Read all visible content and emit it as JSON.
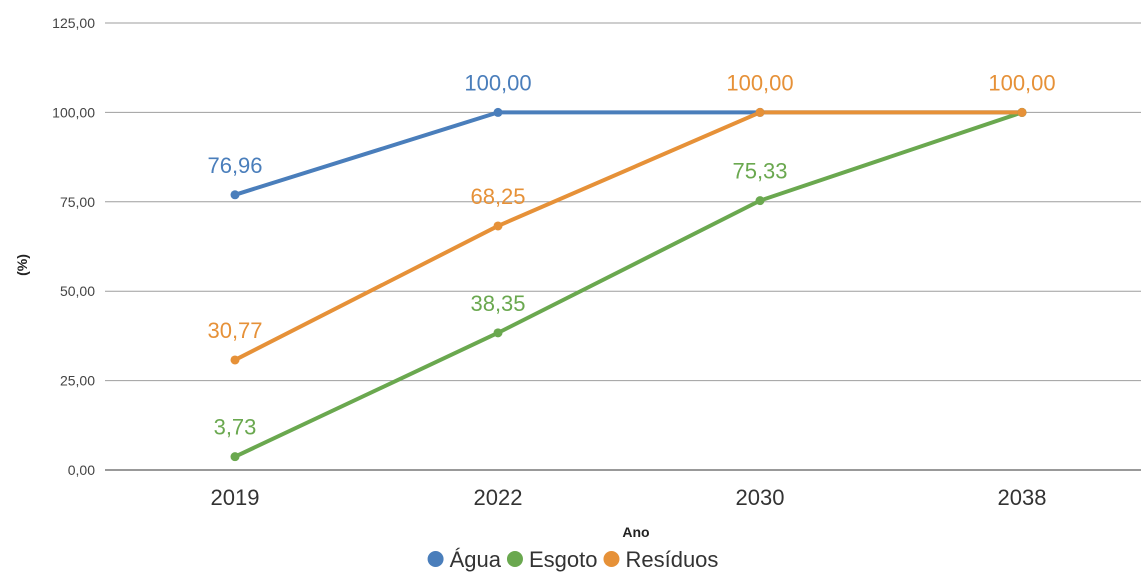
{
  "chart_data": {
    "type": "line",
    "title": "",
    "xlabel": "Ano",
    "ylabel": "(%)",
    "categories": [
      "2019",
      "2022",
      "2030",
      "2038"
    ],
    "ylim": [
      0,
      125
    ],
    "yticks": [
      "0,00",
      "25,00",
      "50,00",
      "75,00",
      "100,00",
      "125,00"
    ],
    "ytick_values": [
      0,
      25,
      50,
      75,
      100,
      125
    ],
    "grid": true,
    "legend_position": "bottom",
    "series": [
      {
        "name": "Água",
        "color": "#4a7ebb",
        "values": [
          76.96,
          100,
          100,
          100
        ],
        "labels": [
          "76,96",
          "100,00",
          null,
          null
        ]
      },
      {
        "name": "Esgoto",
        "color": "#6aa84f",
        "values": [
          3.73,
          38.35,
          75.33,
          100
        ],
        "labels": [
          "3,73",
          "38,35",
          "75,33",
          null
        ]
      },
      {
        "name": "Resíduos",
        "color": "#e69138",
        "values": [
          30.77,
          68.25,
          100,
          100
        ],
        "labels": [
          "30,77",
          "68,25",
          "100,00",
          "100,00"
        ]
      }
    ]
  }
}
